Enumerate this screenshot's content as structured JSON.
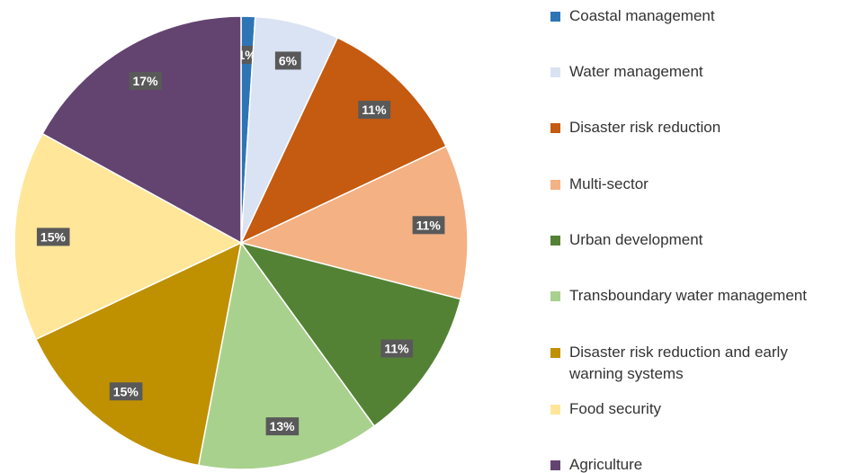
{
  "chart_data": {
    "type": "pie",
    "categories": [
      "Coastal management",
      "Water management",
      "Disaster risk reduction",
      "Multi-sector",
      "Urban development",
      "Transboundary water management",
      "Disaster risk reduction and early warning systems",
      "Food security",
      "Agriculture"
    ],
    "values": [
      1,
      6,
      11,
      11,
      11,
      13,
      15,
      15,
      17
    ],
    "value_labels": [
      "1%",
      "6%",
      "11%",
      "11%",
      "11%",
      "13%",
      "15%",
      "15%",
      "17%"
    ],
    "colors": [
      "#2e75b6",
      "#dae3f3",
      "#c55a11",
      "#f4b183",
      "#548235",
      "#a9d18e",
      "#bf9000",
      "#ffe699",
      "#634370"
    ],
    "legend": "right"
  }
}
